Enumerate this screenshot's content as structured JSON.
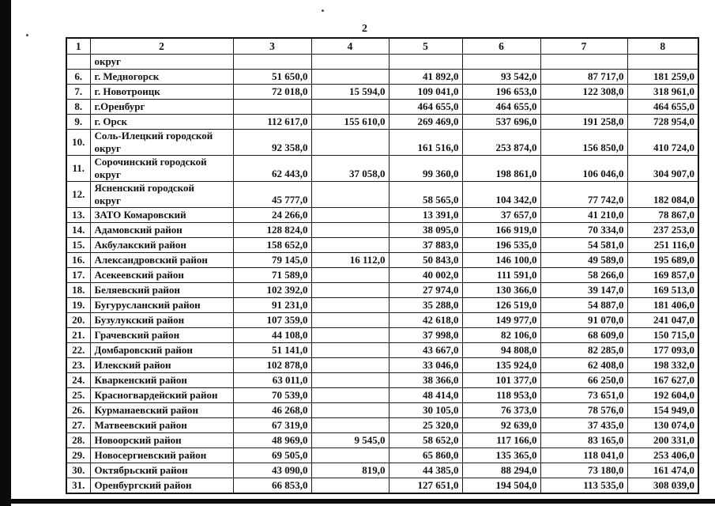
{
  "page": {
    "number": "2"
  },
  "colors": {
    "ink": "#111111",
    "paper": "#ffffff",
    "scan_artifact": "#0b0b0b"
  },
  "table": {
    "column_headers": [
      "1",
      "2",
      "3",
      "4",
      "5",
      "6",
      "7",
      "8"
    ],
    "rows": [
      [
        "",
        "округ",
        "",
        "",
        "",
        "",
        "",
        ""
      ],
      [
        "6.",
        "г. Медногорск",
        "51 650,0",
        "",
        "41 892,0",
        "93 542,0",
        "87 717,0",
        "181 259,0"
      ],
      [
        "7.",
        "г. Новотроицк",
        "72 018,0",
        "15 594,0",
        "109 041,0",
        "196 653,0",
        "122 308,0",
        "318 961,0"
      ],
      [
        "8.",
        "г.Оренбург",
        "",
        "",
        "464 655,0",
        "464 655,0",
        "",
        "464 655,0"
      ],
      [
        "9.",
        "г. Орск",
        "112 617,0",
        "155 610,0",
        "269 469,0",
        "537 696,0",
        "191 258,0",
        "728 954,0"
      ],
      [
        "10.",
        "Соль-Илецкий городской\nокруг",
        "92 358,0",
        "",
        "161 516,0",
        "253 874,0",
        "156 850,0",
        "410 724,0"
      ],
      [
        "11.",
        "Сорочинский городской\nокруг",
        "62 443,0",
        "37 058,0",
        "99 360,0",
        "198 861,0",
        "106 046,0",
        "304 907,0"
      ],
      [
        "12.",
        "Ясненский городской\nокруг",
        "45 777,0",
        "",
        "58 565,0",
        "104 342,0",
        "77 742,0",
        "182 084,0"
      ],
      [
        "13.",
        "ЗАТО Комаровский",
        "24 266,0",
        "",
        "13 391,0",
        "37 657,0",
        "41 210,0",
        "78 867,0"
      ],
      [
        "14.",
        "Адамовский район",
        "128 824,0",
        "",
        "38 095,0",
        "166 919,0",
        "70 334,0",
        "237 253,0"
      ],
      [
        "15.",
        "Акбулакский район",
        "158 652,0",
        "",
        "37 883,0",
        "196 535,0",
        "54 581,0",
        "251 116,0"
      ],
      [
        "16.",
        "Александровский район",
        "79 145,0",
        "16 112,0",
        "50 843,0",
        "146 100,0",
        "49 589,0",
        "195 689,0"
      ],
      [
        "17.",
        "Асекеевский район",
        "71 589,0",
        "",
        "40 002,0",
        "111 591,0",
        "58 266,0",
        "169 857,0"
      ],
      [
        "18.",
        "Беляевский район",
        "102 392,0",
        "",
        "27 974,0",
        "130 366,0",
        "39 147,0",
        "169 513,0"
      ],
      [
        "19.",
        "Бугурусланский район",
        "91 231,0",
        "",
        "35 288,0",
        "126 519,0",
        "54 887,0",
        "181 406,0"
      ],
      [
        "20.",
        "Бузулукский район",
        "107 359,0",
        "",
        "42 618,0",
        "149 977,0",
        "91 070,0",
        "241 047,0"
      ],
      [
        "21.",
        "Грачевский район",
        "44 108,0",
        "",
        "37 998,0",
        "82 106,0",
        "68 609,0",
        "150 715,0"
      ],
      [
        "22.",
        "Домбаровский район",
        "51 141,0",
        "",
        "43 667,0",
        "94 808,0",
        "82 285,0",
        "177 093,0"
      ],
      [
        "23.",
        "Илекский район",
        "102 878,0",
        "",
        "33 046,0",
        "135 924,0",
        "62 408,0",
        "198 332,0"
      ],
      [
        "24.",
        "Кваркенский район",
        "63 011,0",
        "",
        "38 366,0",
        "101 377,0",
        "66 250,0",
        "167 627,0"
      ],
      [
        "25.",
        "Красногвардейский район",
        "70 539,0",
        "",
        "48 414,0",
        "118 953,0",
        "73 651,0",
        "192 604,0"
      ],
      [
        "26.",
        "Курманаевский район",
        "46 268,0",
        "",
        "30 105,0",
        "76 373,0",
        "78 576,0",
        "154 949,0"
      ],
      [
        "27.",
        "Матвеевский район",
        "67 319,0",
        "",
        "25 320,0",
        "92 639,0",
        "37 435,0",
        "130 074,0"
      ],
      [
        "28.",
        "Новоорский район",
        "48 969,0",
        "9 545,0",
        "58 652,0",
        "117 166,0",
        "83 165,0",
        "200 331,0"
      ],
      [
        "29.",
        "Новосергиевский район",
        "69 505,0",
        "",
        "65 860,0",
        "135 365,0",
        "118 041,0",
        "253 406,0"
      ],
      [
        "30.",
        "Октябрьский район",
        "43 090,0",
        "819,0",
        "44 385,0",
        "88 294,0",
        "73 180,0",
        "161 474,0"
      ],
      [
        "31.",
        "Оренбургский район",
        "66 853,0",
        "",
        "127 651,0",
        "194 504,0",
        "113 535,0",
        "308 039,0"
      ]
    ]
  }
}
